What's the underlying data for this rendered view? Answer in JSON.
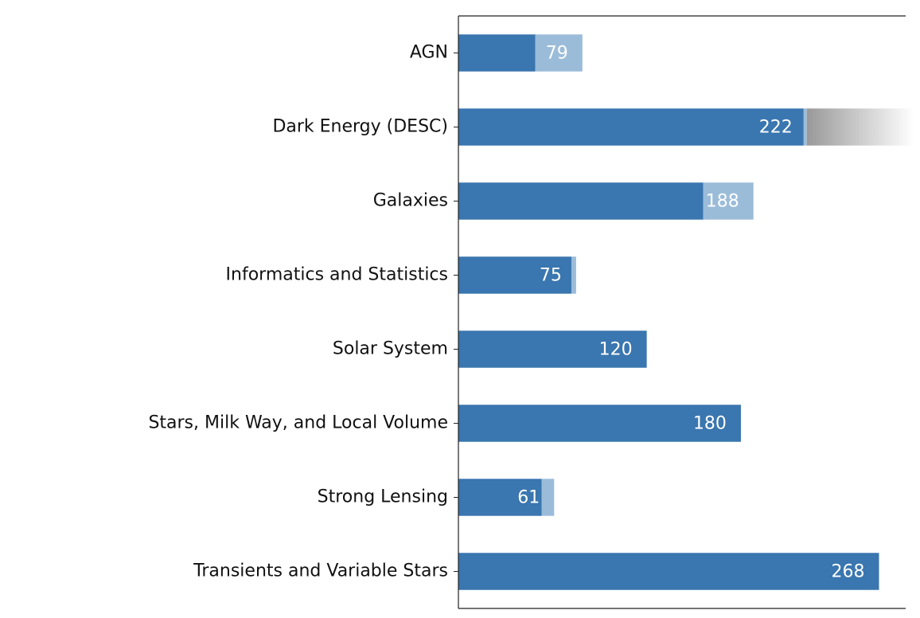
{
  "chart_data": {
    "type": "stacked-barh",
    "categories": [
      "AGN",
      "Dark Energy (DESC)",
      "Galaxies",
      "Informatics and Statistics",
      "Solar System",
      "Stars, Milk Way, and Local Volume",
      "Strong Lensing",
      "Transients and Variable Stars"
    ],
    "series": [
      {
        "color": "#3a76af",
        "values": [
          49,
          220,
          156,
          72,
          120,
          180,
          53,
          268
        ]
      },
      {
        "color": "#9bbcd9",
        "values": [
          30,
          2,
          32,
          3,
          0,
          0,
          8,
          0
        ]
      }
    ],
    "totals": [
      79,
      222,
      188,
      75,
      120,
      180,
      61,
      268
    ],
    "xlim": [
      0,
      285
    ]
  }
}
